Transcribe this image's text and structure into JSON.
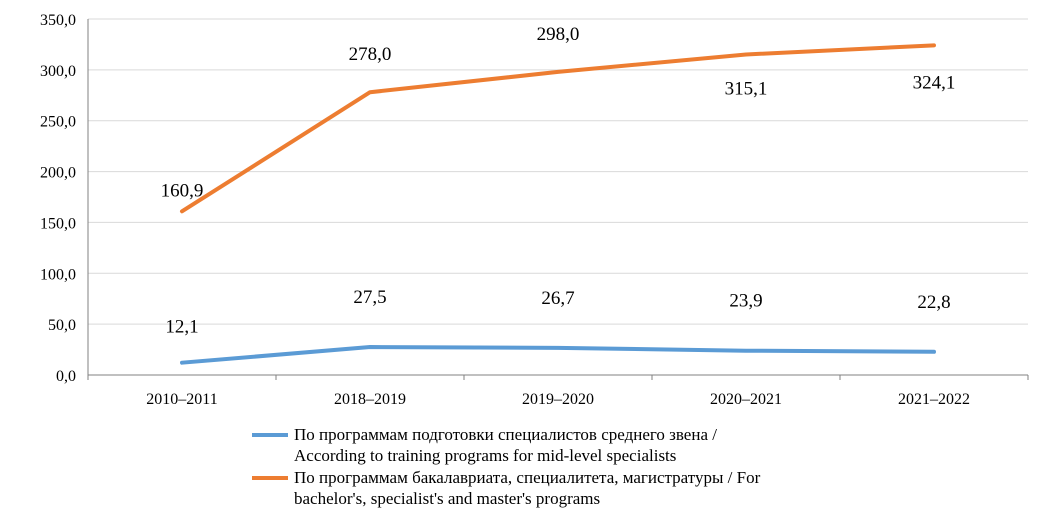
{
  "chart_data": {
    "type": "line",
    "categories": [
      "2010–2011",
      "2018–2019",
      "2019–2020",
      "2020–2021",
      "2021–2022"
    ],
    "series": [
      {
        "name_line1": "По программам подготовки специалистов среднего звена /",
        "name_line2": "According to training programs for mid-level specialists",
        "color": "#5B9BD5",
        "values": [
          12.1,
          27.5,
          26.7,
          23.9,
          22.8
        ],
        "labels": [
          "12,1",
          "27,5",
          "26,7",
          "23,9",
          "22,8"
        ]
      },
      {
        "name_line1": "По программам бакалавриата, специалитета, магистратуры / For",
        "name_line2": "bachelor's, specialist's and master's programs",
        "color": "#ED7D31",
        "values": [
          160.9,
          278.0,
          298.0,
          315.1,
          324.1
        ],
        "labels": [
          "160,9",
          "278,0",
          "298,0",
          "315,1",
          "324,1"
        ]
      }
    ],
    "y_ticks": [
      "0,0",
      "50,0",
      "100,0",
      "150,0",
      "200,0",
      "250,0",
      "300,0",
      "350,0"
    ],
    "ylim": [
      0,
      350
    ],
    "grid": true,
    "legend_position": "bottom"
  }
}
